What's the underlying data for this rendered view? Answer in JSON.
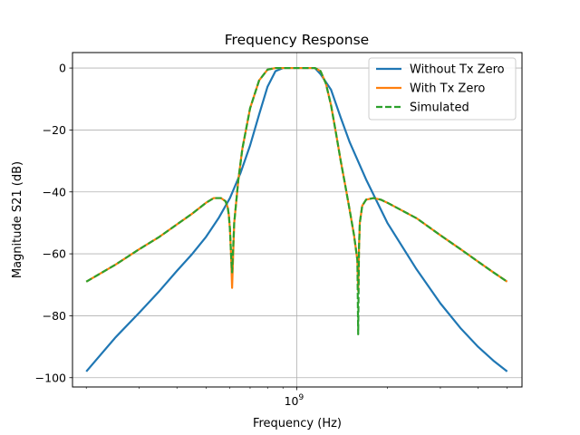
{
  "chart_data": {
    "type": "line",
    "title": "Frequency Response",
    "xlabel": "Frequency (Hz)",
    "ylabel": "Magnitude S21 (dB)",
    "xscale": "log",
    "xlim": [
      180000000,
      5600000000
    ],
    "ylim": [
      -103,
      5
    ],
    "grid": true,
    "legend_position": "top-right",
    "x_ticks": [
      {
        "value": 1000000000,
        "label": "10^9"
      }
    ],
    "y_ticks": [
      0,
      -20,
      -40,
      -60,
      -80,
      -100
    ],
    "series": [
      {
        "name": "Without Tx Zero",
        "color": "#1f77b4",
        "style": "solid",
        "x": [
          200000000,
          250000000,
          300000000,
          350000000,
          400000000,
          450000000,
          500000000,
          550000000,
          600000000,
          650000000,
          700000000,
          750000000,
          800000000,
          850000000,
          900000000,
          950000000,
          1000000000,
          1050000000,
          1100000000,
          1150000000,
          1200000000,
          1300000000,
          1400000000,
          1500000000,
          1700000000,
          2000000000,
          2500000000,
          3000000000,
          3500000000,
          4000000000,
          4500000000,
          5000000000
        ],
        "y": [
          -98,
          -87,
          -79,
          -72,
          -65.5,
          -60,
          -54.5,
          -48.5,
          -42,
          -34,
          -25,
          -15,
          -6,
          -1,
          0,
          0,
          0,
          0,
          0,
          0,
          -2,
          -7,
          -16,
          -24,
          -36,
          -50,
          -65,
          -76,
          -84,
          -90,
          -94.5,
          -98
        ]
      },
      {
        "name": "With Tx Zero",
        "color": "#ff7f0e",
        "style": "solid",
        "x": [
          200000000,
          250000000,
          300000000,
          350000000,
          400000000,
          450000000,
          500000000,
          530000000,
          560000000,
          580000000,
          590000000,
          595000000,
          600000000,
          605000000,
          610000000,
          620000000,
          640000000,
          660000000,
          700000000,
          750000000,
          800000000,
          850000000,
          900000000,
          1000000000,
          1100000000,
          1150000000,
          1200000000,
          1250000000,
          1300000000,
          1350000000,
          1400000000,
          1450000000,
          1500000000,
          1550000000,
          1590000000,
          1600000000,
          1610000000,
          1620000000,
          1650000000,
          1700000000,
          1800000000,
          1900000000,
          2000000000,
          2500000000,
          3000000000,
          3500000000,
          4000000000,
          4500000000,
          5000000000
        ],
        "y": [
          -69,
          -63.5,
          -58.5,
          -54.5,
          -50.5,
          -47,
          -43.5,
          -42,
          -42,
          -43,
          -45,
          -47.5,
          -52,
          -60,
          -71,
          -50,
          -36,
          -26,
          -13,
          -4,
          -0.5,
          0,
          0,
          0,
          0,
          0,
          -1,
          -5,
          -12,
          -21,
          -30,
          -38,
          -46,
          -54,
          -62,
          -72,
          -58,
          -50,
          -44.5,
          -42.5,
          -42,
          -42.5,
          -43.5,
          -48.5,
          -54,
          -58.5,
          -62.5,
          -66,
          -69
        ]
      },
      {
        "name": "Simulated",
        "color": "#2ca02c",
        "style": "dashed",
        "x": [
          200000000,
          250000000,
          300000000,
          350000000,
          400000000,
          450000000,
          500000000,
          530000000,
          560000000,
          580000000,
          590000000,
          595000000,
          600000000,
          605000000,
          610000000,
          620000000,
          640000000,
          660000000,
          700000000,
          750000000,
          800000000,
          850000000,
          900000000,
          1000000000,
          1100000000,
          1150000000,
          1200000000,
          1250000000,
          1300000000,
          1350000000,
          1400000000,
          1450000000,
          1500000000,
          1550000000,
          1590000000,
          1600000000,
          1610000000,
          1620000000,
          1650000000,
          1700000000,
          1800000000,
          1900000000,
          2000000000,
          2500000000,
          3000000000,
          3500000000,
          4000000000,
          4500000000,
          5000000000
        ],
        "y": [
          -69,
          -63.5,
          -58.5,
          -54.5,
          -50.5,
          -47,
          -43.5,
          -42,
          -42,
          -43,
          -45,
          -47.5,
          -52,
          -60,
          -66,
          -50,
          -36,
          -26,
          -13,
          -4,
          -0.5,
          0,
          0,
          0,
          0,
          0,
          -1,
          -5,
          -12,
          -21,
          -30,
          -38,
          -46,
          -54,
          -62,
          -86,
          -58,
          -50,
          -44.5,
          -42.5,
          -42,
          -42.5,
          -43.5,
          -48.5,
          -54,
          -58.5,
          -62.5,
          -66,
          -69
        ]
      }
    ]
  }
}
